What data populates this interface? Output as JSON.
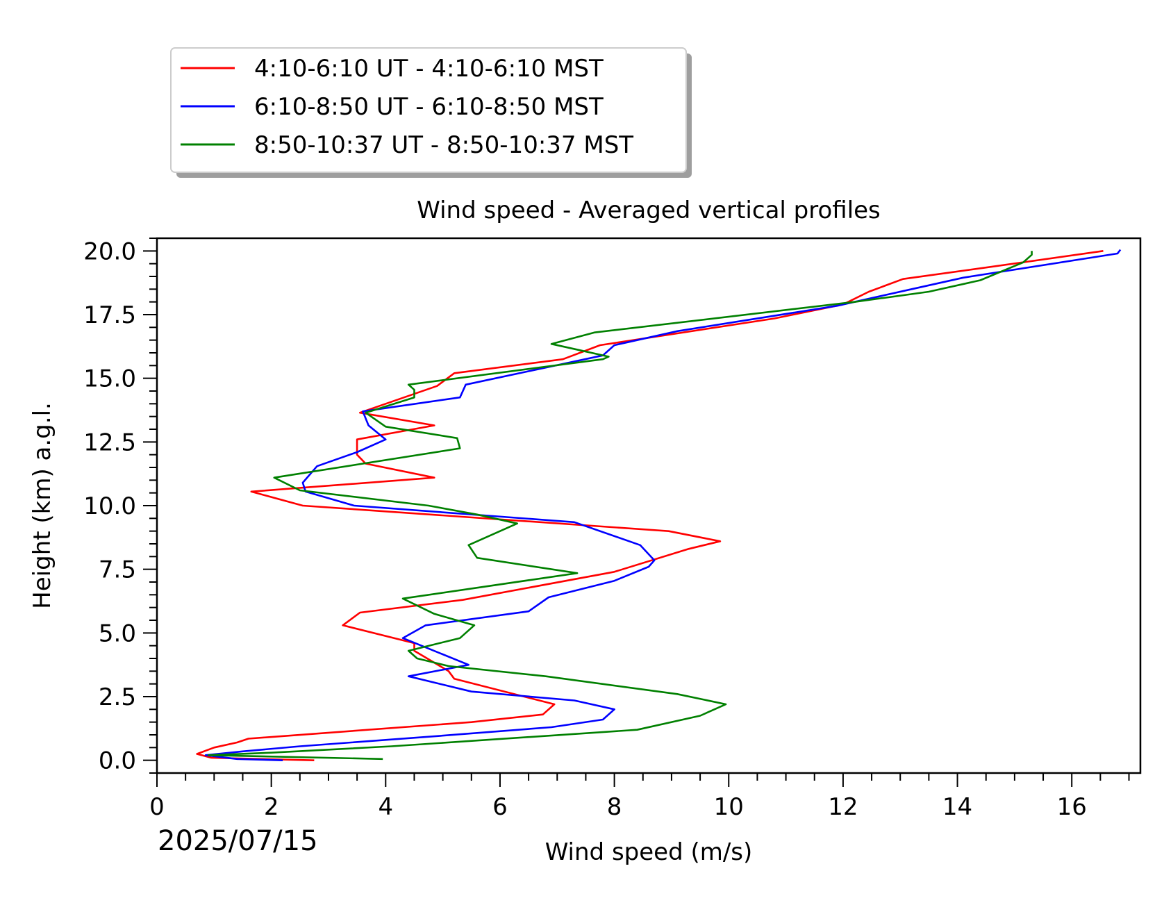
{
  "chart_data": {
    "type": "line",
    "orientation": "vertical-profile",
    "title": "Wind speed - Averaged vertical profiles",
    "xlabel": "Wind speed (m/s)",
    "ylabel": "Height (km) a.g.l.",
    "date_label": "2025/07/15",
    "xlim": [
      0,
      17.2
    ],
    "ylim": [
      -0.5,
      20.5
    ],
    "xticks": [
      0,
      2,
      4,
      6,
      8,
      10,
      12,
      14,
      16
    ],
    "yticks": [
      0.0,
      2.5,
      5.0,
      7.5,
      10.0,
      12.5,
      15.0,
      17.5,
      20.0
    ],
    "xtick_labels": [
      "0",
      "2",
      "4",
      "6",
      "8",
      "10",
      "12",
      "14",
      "16"
    ],
    "ytick_labels": [
      "0.0",
      "2.5",
      "5.0",
      "7.5",
      "10.0",
      "12.5",
      "15.0",
      "17.5",
      "20.0"
    ],
    "x_minor_step": 0.5,
    "y_minor_step": 0.5,
    "grid": false,
    "legend_position": "above plot, top-left",
    "series": [
      {
        "name": "4:10-6:10 UT - 4:10-6:10 MST",
        "color": "#ff0000",
        "points": [
          [
            2.75,
            0.0
          ],
          [
            0.95,
            0.1
          ],
          [
            0.7,
            0.25
          ],
          [
            1.0,
            0.5
          ],
          [
            1.4,
            0.7
          ],
          [
            1.6,
            0.85
          ],
          [
            5.5,
            1.5
          ],
          [
            6.75,
            1.8
          ],
          [
            6.95,
            2.2
          ],
          [
            5.2,
            3.2
          ],
          [
            5.1,
            3.5
          ],
          [
            4.5,
            4.3
          ],
          [
            4.5,
            4.6
          ],
          [
            3.25,
            5.3
          ],
          [
            3.55,
            5.8
          ],
          [
            5.35,
            6.3
          ],
          [
            8.0,
            7.4
          ],
          [
            9.3,
            8.3
          ],
          [
            9.85,
            8.6
          ],
          [
            8.95,
            9.0
          ],
          [
            2.55,
            10.0
          ],
          [
            1.65,
            10.55
          ],
          [
            4.85,
            11.1
          ],
          [
            3.65,
            11.65
          ],
          [
            3.5,
            12.0
          ],
          [
            3.5,
            12.6
          ],
          [
            4.85,
            13.15
          ],
          [
            3.55,
            13.65
          ],
          [
            4.9,
            14.7
          ],
          [
            5.2,
            15.2
          ],
          [
            7.1,
            15.75
          ],
          [
            7.75,
            16.3
          ],
          [
            10.8,
            17.35
          ],
          [
            12.0,
            17.9
          ],
          [
            12.45,
            18.4
          ],
          [
            13.05,
            18.9
          ],
          [
            14.5,
            19.35
          ],
          [
            16.55,
            20.0
          ]
        ]
      },
      {
        "name": "6:10-8:50 UT - 6:10-8:50 MST",
        "color": "#0000ff",
        "points": [
          [
            2.2,
            0.0
          ],
          [
            1.4,
            0.05
          ],
          [
            0.85,
            0.2
          ],
          [
            1.5,
            0.35
          ],
          [
            2.5,
            0.55
          ],
          [
            4.9,
            0.95
          ],
          [
            6.9,
            1.3
          ],
          [
            7.8,
            1.6
          ],
          [
            8.0,
            2.0
          ],
          [
            7.3,
            2.35
          ],
          [
            5.5,
            2.7
          ],
          [
            4.4,
            3.3
          ],
          [
            5.45,
            3.75
          ],
          [
            4.3,
            4.8
          ],
          [
            4.7,
            5.3
          ],
          [
            6.5,
            5.85
          ],
          [
            6.85,
            6.4
          ],
          [
            8.0,
            7.05
          ],
          [
            8.6,
            7.6
          ],
          [
            8.7,
            7.85
          ],
          [
            8.45,
            8.45
          ],
          [
            7.3,
            9.35
          ],
          [
            3.45,
            10.0
          ],
          [
            2.6,
            10.55
          ],
          [
            2.55,
            10.9
          ],
          [
            2.8,
            11.55
          ],
          [
            3.5,
            12.1
          ],
          [
            4.0,
            12.6
          ],
          [
            3.7,
            13.15
          ],
          [
            3.6,
            13.7
          ],
          [
            5.3,
            14.25
          ],
          [
            5.4,
            14.75
          ],
          [
            7.8,
            15.9
          ],
          [
            8.0,
            16.3
          ],
          [
            9.1,
            16.85
          ],
          [
            11.9,
            17.85
          ],
          [
            13.2,
            18.5
          ],
          [
            14.1,
            18.95
          ],
          [
            16.8,
            19.9
          ],
          [
            16.85,
            20.05
          ]
        ]
      },
      {
        "name": "8:50-10:37 UT - 8:50-10:37 MST",
        "color": "#008000",
        "points": [
          [
            3.95,
            0.05
          ],
          [
            0.9,
            0.2
          ],
          [
            2.0,
            0.3
          ],
          [
            4.1,
            0.55
          ],
          [
            8.4,
            1.2
          ],
          [
            9.5,
            1.75
          ],
          [
            9.95,
            2.2
          ],
          [
            9.1,
            2.6
          ],
          [
            6.8,
            3.3
          ],
          [
            5.1,
            3.7
          ],
          [
            4.55,
            4.0
          ],
          [
            4.4,
            4.3
          ],
          [
            5.3,
            4.8
          ],
          [
            5.55,
            5.3
          ],
          [
            4.85,
            5.75
          ],
          [
            4.3,
            6.35
          ],
          [
            7.35,
            7.35
          ],
          [
            5.6,
            7.95
          ],
          [
            5.45,
            8.45
          ],
          [
            6.3,
            9.3
          ],
          [
            5.6,
            9.65
          ],
          [
            4.75,
            10.0
          ],
          [
            2.5,
            10.6
          ],
          [
            2.05,
            11.1
          ],
          [
            5.3,
            12.25
          ],
          [
            5.25,
            12.65
          ],
          [
            4.0,
            13.1
          ],
          [
            3.65,
            13.65
          ],
          [
            4.5,
            14.25
          ],
          [
            4.5,
            14.55
          ],
          [
            4.4,
            14.75
          ],
          [
            7.8,
            15.75
          ],
          [
            7.9,
            15.85
          ],
          [
            7.4,
            16.1
          ],
          [
            6.9,
            16.35
          ],
          [
            7.65,
            16.8
          ],
          [
            12.2,
            18.0
          ],
          [
            13.5,
            18.4
          ],
          [
            14.4,
            18.85
          ],
          [
            15.15,
            19.55
          ],
          [
            15.3,
            19.85
          ],
          [
            15.3,
            20.0
          ]
        ]
      }
    ]
  }
}
